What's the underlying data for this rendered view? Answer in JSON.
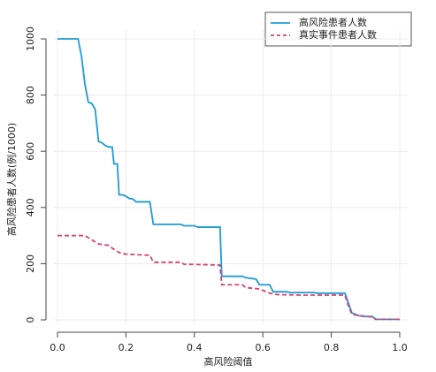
{
  "chart_data": {
    "type": "line",
    "x_label": "高风险阈值",
    "y_label": "高风险患者人数(例/1000)",
    "xlim": [
      0,
      1
    ],
    "ylim": [
      0,
      1000
    ],
    "xticks": [
      {
        "value": 0,
        "label": "0.0"
      },
      {
        "value": 0.2,
        "label": "0.2"
      },
      {
        "value": 0.4,
        "label": "0.4"
      },
      {
        "value": 0.6,
        "label": "0.6"
      },
      {
        "value": 0.8,
        "label": "0.8"
      },
      {
        "value": 1,
        "label": "1.0"
      }
    ],
    "yticks": [
      0,
      200,
      400,
      600,
      800,
      1000
    ],
    "grid": true,
    "legend": "top-right",
    "series": [
      {
        "name": "高风险患者人数",
        "color": "#1f9ad6",
        "dash": false,
        "x": [
          0,
          0.06,
          0.07,
          0.08,
          0.09,
          0.1,
          0.11,
          0.12,
          0.13,
          0.14,
          0.15,
          0.16,
          0.165,
          0.175,
          0.18,
          0.19,
          0.2,
          0.21,
          0.22,
          0.23,
          0.27,
          0.28,
          0.36,
          0.37,
          0.4,
          0.41,
          0.475,
          0.48,
          0.54,
          0.55,
          0.58,
          0.59,
          0.62,
          0.63,
          0.67,
          0.68,
          0.75,
          0.76,
          0.84,
          0.85,
          0.86,
          0.87,
          0.88,
          0.9,
          0.92,
          0.93,
          1
        ],
        "values": [
          1000,
          1000,
          940,
          840,
          775,
          770,
          750,
          635,
          630,
          620,
          615,
          615,
          555,
          555,
          445,
          445,
          440,
          432,
          430,
          420,
          420,
          340,
          340,
          335,
          335,
          330,
          330,
          155,
          155,
          150,
          145,
          125,
          125,
          100,
          100,
          97,
          97,
          95,
          95,
          60,
          25,
          20,
          15,
          12,
          12,
          2,
          2
        ]
      },
      {
        "name": "真实事件患者人数",
        "color": "#d6416f",
        "dash": true,
        "x": [
          0,
          0.08,
          0.1,
          0.12,
          0.15,
          0.16,
          0.18,
          0.19,
          0.23,
          0.27,
          0.28,
          0.36,
          0.37,
          0.475,
          0.48,
          0.54,
          0.55,
          0.59,
          0.62,
          0.64,
          0.72,
          0.84,
          0.85,
          0.86,
          0.88,
          0.92,
          0.93,
          1
        ],
        "values": [
          300,
          300,
          285,
          270,
          265,
          255,
          240,
          235,
          232,
          230,
          205,
          205,
          198,
          195,
          125,
          125,
          115,
          110,
          95,
          90,
          88,
          88,
          50,
          20,
          15,
          10,
          2,
          2
        ]
      }
    ]
  }
}
